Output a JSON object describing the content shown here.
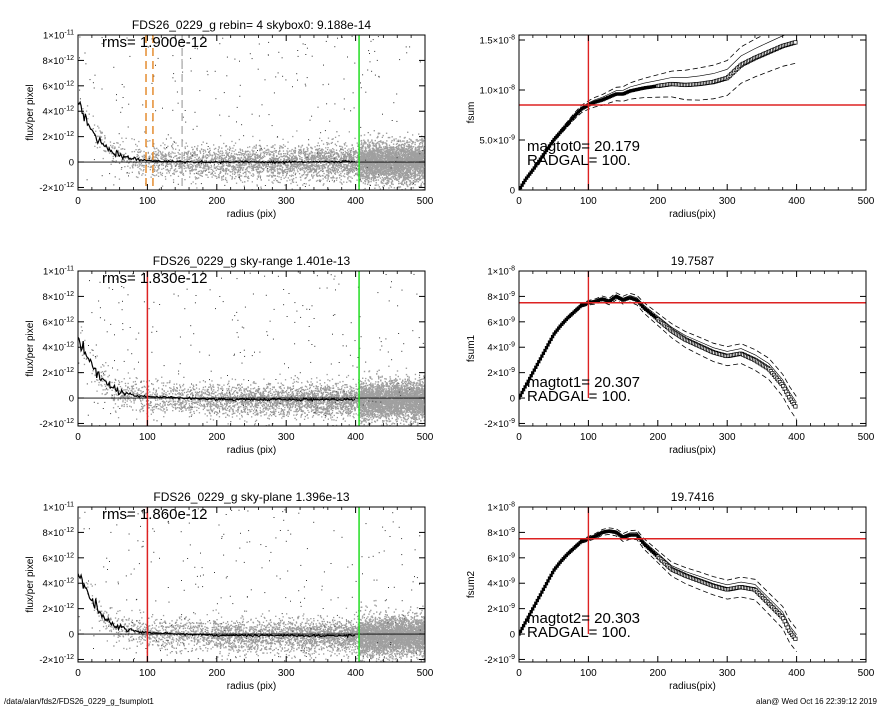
{
  "footer": {
    "left": "/data/alan/fds2/FDS26_0229_g_fsumplot1",
    "right": "alan@  Wed Oct 16 22:39:12 2019"
  },
  "chart_data": [
    {
      "type": "scatter",
      "title": "FDS26_0229_g rebin= 4    skybox0:  9.188e-14",
      "annotation": "rms= 1.900e-12",
      "xlabel": "radius (pix)",
      "ylabel": "flux/per pixel",
      "xlim": [
        0,
        500
      ],
      "ylim": [
        -2.2e-12,
        1e-11
      ],
      "xticks": [
        "0",
        "100",
        "200",
        "300",
        "400",
        "500"
      ],
      "yticks": [
        {
          "v": 1e-11,
          "m": "1",
          "e": "-11"
        },
        {
          "v": 8e-12,
          "m": "8",
          "e": "-12"
        },
        {
          "v": 6e-12,
          "m": "6",
          "e": "-12"
        },
        {
          "v": 4e-12,
          "m": "4",
          "e": "-12"
        },
        {
          "v": 2e-12,
          "m": "2",
          "e": "-12"
        },
        {
          "v": 0,
          "m": "0",
          "e": ""
        },
        {
          "v": -2e-12,
          "m": "-2",
          "e": "-12"
        }
      ],
      "vlines": [
        {
          "x": 98,
          "color": "#e07b10",
          "dash": true
        },
        {
          "x": 108,
          "color": "#e07b10",
          "dash": true
        },
        {
          "x": 150,
          "color": "#aaaaaa",
          "dash": true
        },
        {
          "x": 405,
          "color": "#22dd22",
          "dash": false
        }
      ],
      "profile": [
        [
          0,
          4.8e-12
        ],
        [
          10,
          3.6e-12
        ],
        [
          20,
          2.6e-12
        ],
        [
          30,
          1.8e-12
        ],
        [
          40,
          1.2e-12
        ],
        [
          50,
          8e-13
        ],
        [
          60,
          5e-13
        ],
        [
          80,
          2.5e-13
        ],
        [
          100,
          1e-13
        ],
        [
          150,
          2e-14
        ],
        [
          200,
          0
        ],
        [
          300,
          0
        ],
        [
          400,
          2e-14
        ]
      ],
      "noise": {
        "sigma": 1.9e-12,
        "floor": 0
      }
    },
    {
      "type": "line",
      "title": "",
      "xlabel": "radius(pix)",
      "ylabel": "fsum",
      "xlim": [
        0,
        500
      ],
      "ylim": [
        0,
        1.55e-08
      ],
      "xticks": [
        "0",
        "100",
        "200",
        "300",
        "400",
        "500"
      ],
      "yticks": [
        {
          "v": 1.5e-08,
          "m": "1.5",
          "e": "-8"
        },
        {
          "v": 1e-08,
          "m": "1.0",
          "e": "-8"
        },
        {
          "v": 5e-09,
          "m": "5.0",
          "e": "-9"
        },
        {
          "v": 0,
          "m": "0",
          "e": ""
        }
      ],
      "annotations": [
        "magtot0=  20.179",
        "RADGAL=    100."
      ],
      "hline": 8.5e-09,
      "vline": 100,
      "curve": [
        [
          0,
          0
        ],
        [
          10,
          1.1e-09
        ],
        [
          20,
          2e-09
        ],
        [
          30,
          3e-09
        ],
        [
          40,
          4e-09
        ],
        [
          50,
          5e-09
        ],
        [
          60,
          5.8e-09
        ],
        [
          70,
          6.6e-09
        ],
        [
          80,
          7.4e-09
        ],
        [
          90,
          8.1e-09
        ],
        [
          100,
          8.5e-09
        ],
        [
          110,
          8.8e-09
        ],
        [
          120,
          9e-09
        ],
        [
          130,
          9.3e-09
        ],
        [
          140,
          9.6e-09
        ],
        [
          150,
          9.6e-09
        ],
        [
          160,
          9.9e-09
        ],
        [
          180,
          1.02e-08
        ],
        [
          200,
          1.04e-08
        ],
        [
          220,
          1.06e-08
        ],
        [
          240,
          1.05e-08
        ],
        [
          260,
          1.06e-08
        ],
        [
          280,
          1.08e-08
        ],
        [
          300,
          1.12e-08
        ],
        [
          320,
          1.25e-08
        ],
        [
          340,
          1.32e-08
        ],
        [
          360,
          1.38e-08
        ],
        [
          380,
          1.44e-08
        ],
        [
          400,
          1.48e-08
        ]
      ],
      "band": 7e-10
    },
    {
      "type": "scatter",
      "title": "FDS26_0229_g sky-range  1.401e-13",
      "annotation": "rms= 1.830e-12",
      "xlabel": "radius (pix)",
      "ylabel": "flux/per pixel",
      "xlim": [
        0,
        500
      ],
      "ylim": [
        -2.2e-12,
        1e-11
      ],
      "xticks": [
        "0",
        "100",
        "200",
        "300",
        "400",
        "500"
      ],
      "yticks": [
        {
          "v": 1e-11,
          "m": "1",
          "e": "-11"
        },
        {
          "v": 8e-12,
          "m": "8",
          "e": "-12"
        },
        {
          "v": 6e-12,
          "m": "6",
          "e": "-12"
        },
        {
          "v": 4e-12,
          "m": "4",
          "e": "-12"
        },
        {
          "v": 2e-12,
          "m": "2",
          "e": "-12"
        },
        {
          "v": 0,
          "m": "0",
          "e": ""
        },
        {
          "v": -2e-12,
          "m": "-2",
          "e": "-12"
        }
      ],
      "vlines": [
        {
          "x": 100,
          "color": "#dd2222",
          "dash": false
        },
        {
          "x": 405,
          "color": "#22dd22",
          "dash": false
        }
      ],
      "profile": [
        [
          0,
          4.8e-12
        ],
        [
          10,
          3.6e-12
        ],
        [
          20,
          2.6e-12
        ],
        [
          30,
          1.8e-12
        ],
        [
          40,
          1.2e-12
        ],
        [
          50,
          8e-13
        ],
        [
          60,
          5e-13
        ],
        [
          80,
          2.5e-13
        ],
        [
          100,
          1e-13
        ],
        [
          150,
          0
        ],
        [
          200,
          -1e-13
        ],
        [
          300,
          -1.2e-13
        ],
        [
          400,
          -1.3e-13
        ]
      ],
      "noise": {
        "sigma": 1.83e-12,
        "floor": -1.4e-13
      }
    },
    {
      "type": "line",
      "title": "19.7587",
      "xlabel": "radius(pix)",
      "ylabel": "fsum1",
      "xlim": [
        0,
        500
      ],
      "ylim": [
        -2.2e-09,
        1e-08
      ],
      "xticks": [
        "0",
        "100",
        "200",
        "300",
        "400",
        "500"
      ],
      "yticks": [
        {
          "v": 1e-08,
          "m": "1",
          "e": "-8"
        },
        {
          "v": 8e-09,
          "m": "8",
          "e": "-9"
        },
        {
          "v": 6e-09,
          "m": "6",
          "e": "-9"
        },
        {
          "v": 4e-09,
          "m": "4",
          "e": "-9"
        },
        {
          "v": 2e-09,
          "m": "2",
          "e": "-9"
        },
        {
          "v": 0,
          "m": "0",
          "e": ""
        },
        {
          "v": -2e-09,
          "m": "-2",
          "e": "-9"
        }
      ],
      "annotations": [
        "magtot1=  20.307",
        "RADGAL=    100."
      ],
      "hline": 7.5e-09,
      "vline": 100,
      "curve": [
        [
          0,
          0
        ],
        [
          10,
          1e-09
        ],
        [
          20,
          2e-09
        ],
        [
          30,
          3e-09
        ],
        [
          40,
          4e-09
        ],
        [
          50,
          5e-09
        ],
        [
          60,
          5.7e-09
        ],
        [
          70,
          6.3e-09
        ],
        [
          80,
          6.8e-09
        ],
        [
          90,
          7.3e-09
        ],
        [
          100,
          7.5e-09
        ],
        [
          110,
          7.6e-09
        ],
        [
          120,
          7.8e-09
        ],
        [
          130,
          7.6e-09
        ],
        [
          140,
          8e-09
        ],
        [
          150,
          7.7e-09
        ],
        [
          160,
          7.9e-09
        ],
        [
          170,
          7.7e-09
        ],
        [
          180,
          7.1e-09
        ],
        [
          200,
          6.2e-09
        ],
        [
          220,
          5.3e-09
        ],
        [
          240,
          4.6e-09
        ],
        [
          260,
          4.1e-09
        ],
        [
          280,
          3.6e-09
        ],
        [
          300,
          3.3e-09
        ],
        [
          320,
          3.5e-09
        ],
        [
          340,
          3e-09
        ],
        [
          360,
          2.3e-09
        ],
        [
          380,
          1e-09
        ],
        [
          390,
          0
        ],
        [
          400,
          -8e-10
        ]
      ],
      "band": 3e-10
    },
    {
      "type": "scatter",
      "title": "FDS26_0229_g sky-plane  1.396e-13",
      "annotation": "rms= 1.860e-12",
      "xlabel": "radius (pix)",
      "ylabel": "flux/per pixel",
      "xlim": [
        0,
        500
      ],
      "ylim": [
        -2.2e-12,
        1e-11
      ],
      "xticks": [
        "0",
        "100",
        "200",
        "300",
        "400",
        "500"
      ],
      "yticks": [
        {
          "v": 1e-11,
          "m": "1",
          "e": "-11"
        },
        {
          "v": 8e-12,
          "m": "8",
          "e": "-12"
        },
        {
          "v": 6e-12,
          "m": "6",
          "e": "-12"
        },
        {
          "v": 4e-12,
          "m": "4",
          "e": "-12"
        },
        {
          "v": 2e-12,
          "m": "2",
          "e": "-12"
        },
        {
          "v": 0,
          "m": "0",
          "e": ""
        },
        {
          "v": -2e-12,
          "m": "-2",
          "e": "-12"
        }
      ],
      "vlines": [
        {
          "x": 100,
          "color": "#dd2222",
          "dash": false
        },
        {
          "x": 405,
          "color": "#22dd22",
          "dash": false
        }
      ],
      "profile": [
        [
          0,
          4.8e-12
        ],
        [
          10,
          3.6e-12
        ],
        [
          20,
          2.6e-12
        ],
        [
          30,
          1.8e-12
        ],
        [
          40,
          1.2e-12
        ],
        [
          50,
          8e-13
        ],
        [
          60,
          5e-13
        ],
        [
          80,
          2.5e-13
        ],
        [
          100,
          1e-13
        ],
        [
          150,
          0
        ],
        [
          200,
          -1e-13
        ],
        [
          300,
          -1.2e-13
        ],
        [
          400,
          -1.3e-13
        ]
      ],
      "noise": {
        "sigma": 1.86e-12,
        "floor": -1.4e-13
      }
    },
    {
      "type": "line",
      "title": "19.7416",
      "xlabel": "radius(pix)",
      "ylabel": "fsum2",
      "xlim": [
        0,
        500
      ],
      "ylim": [
        -2.2e-09,
        1e-08
      ],
      "xticks": [
        "0",
        "100",
        "200",
        "300",
        "400",
        "500"
      ],
      "yticks": [
        {
          "v": 1e-08,
          "m": "1",
          "e": "-8"
        },
        {
          "v": 8e-09,
          "m": "8",
          "e": "-9"
        },
        {
          "v": 6e-09,
          "m": "6",
          "e": "-9"
        },
        {
          "v": 4e-09,
          "m": "4",
          "e": "-9"
        },
        {
          "v": 2e-09,
          "m": "2",
          "e": "-9"
        },
        {
          "v": 0,
          "m": "0",
          "e": ""
        },
        {
          "v": -2e-09,
          "m": "-2",
          "e": "-9"
        }
      ],
      "annotations": [
        "magtot2=  20.303",
        "RADGAL=    100."
      ],
      "hline": 7.5e-09,
      "vline": 100,
      "curve": [
        [
          0,
          0
        ],
        [
          10,
          1e-09
        ],
        [
          20,
          2e-09
        ],
        [
          30,
          3e-09
        ],
        [
          40,
          4e-09
        ],
        [
          50,
          5e-09
        ],
        [
          60,
          5.7e-09
        ],
        [
          70,
          6.3e-09
        ],
        [
          80,
          6.8e-09
        ],
        [
          90,
          7.3e-09
        ],
        [
          100,
          7.5e-09
        ],
        [
          110,
          7.7e-09
        ],
        [
          120,
          8e-09
        ],
        [
          130,
          8.1e-09
        ],
        [
          140,
          8e-09
        ],
        [
          150,
          7.6e-09
        ],
        [
          160,
          7.8e-09
        ],
        [
          170,
          7.8e-09
        ],
        [
          180,
          7.1e-09
        ],
        [
          200,
          6.1e-09
        ],
        [
          220,
          5.1e-09
        ],
        [
          240,
          4.6e-09
        ],
        [
          260,
          4.2e-09
        ],
        [
          280,
          3.8e-09
        ],
        [
          300,
          3.5e-09
        ],
        [
          320,
          3.7e-09
        ],
        [
          340,
          3.5e-09
        ],
        [
          360,
          2.4e-09
        ],
        [
          380,
          1.3e-09
        ],
        [
          390,
          2e-10
        ],
        [
          400,
          -5e-10
        ]
      ],
      "band": 3e-10
    }
  ]
}
